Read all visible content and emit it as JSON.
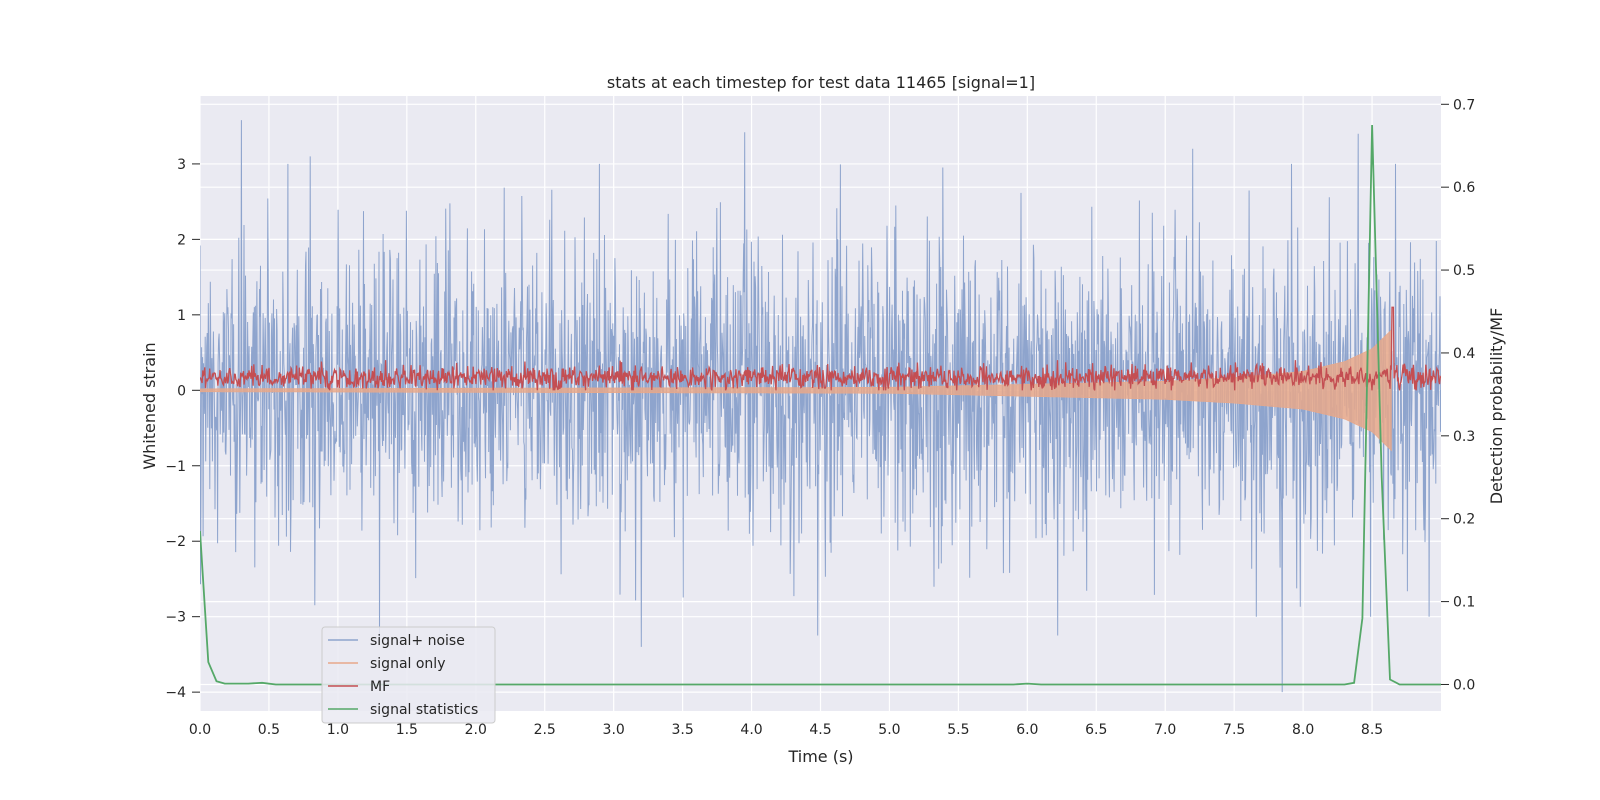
{
  "chart_data": {
    "type": "line",
    "title": "stats at each timestep for test data 11465 [signal=1]",
    "xlabel": "Time (s)",
    "ylabel_left": "Whitened strain",
    "ylabel_right": "Detection probability/MF",
    "xlim": [
      0.0,
      9.0
    ],
    "ylim_left": [
      -4.25,
      3.9
    ],
    "ylim_right": [
      -0.032,
      0.71
    ],
    "x_ticks": [
      "0.0",
      "0.5",
      "1.0",
      "1.5",
      "2.0",
      "2.5",
      "3.0",
      "3.5",
      "4.0",
      "4.5",
      "5.0",
      "5.5",
      "6.0",
      "6.5",
      "7.0",
      "7.5",
      "8.0",
      "8.5"
    ],
    "y_left_ticks": [
      "3",
      "2",
      "1",
      "0",
      "−1",
      "−2",
      "−3",
      "−4"
    ],
    "y_right_ticks": [
      "0.7",
      "0.6",
      "0.5",
      "0.4",
      "0.3",
      "0.2",
      "0.1",
      "0.0"
    ],
    "grid": true,
    "legend_position": "lower left",
    "series": [
      {
        "name": "signal+ noise",
        "color": "#8ea4cd",
        "axis": "left",
        "description_values": {
          "typical_range": [
            -2.0,
            2.0
          ],
          "peaks_x": [
            0.3,
            0.8,
            3.95,
            7.2,
            8.4
          ],
          "peaks_y": [
            3.58,
            3.1,
            3.42,
            3.2,
            3.4
          ],
          "troughs_x": [
            1.3,
            3.2,
            4.48,
            6.22,
            7.85
          ],
          "troughs_y": [
            -3.35,
            -3.4,
            -3.25,
            -3.25,
            -4.0
          ]
        }
      },
      {
        "name": "signal only",
        "color": "#e8a88a",
        "axis": "left",
        "envelope": {
          "x": [
            0.0,
            5.0,
            6.0,
            7.0,
            7.5,
            8.0,
            8.3,
            8.5,
            8.64,
            8.65
          ],
          "amplitude": [
            0.02,
            0.04,
            0.08,
            0.12,
            0.17,
            0.25,
            0.38,
            0.55,
            0.8,
            0.0
          ]
        }
      },
      {
        "name": "MF",
        "color": "#c44e52",
        "axis": "left",
        "description_values": {
          "baseline": 0.17,
          "range": [
            0.0,
            0.4
          ],
          "spike_x": 8.65,
          "spike_y": 1.1
        }
      },
      {
        "name": "signal statistics",
        "color": "#55a868",
        "axis": "right",
        "x": [
          0.0,
          0.06,
          0.12,
          0.18,
          0.25,
          0.35,
          0.45,
          0.55,
          0.7,
          1.0,
          2.0,
          3.0,
          4.0,
          5.0,
          5.9,
          6.0,
          6.1,
          7.0,
          8.0,
          8.3,
          8.37,
          8.43,
          8.5,
          8.57,
          8.63,
          8.7,
          8.8,
          9.0
        ],
        "y": [
          0.185,
          0.027,
          0.004,
          0.001,
          0.001,
          0.001,
          0.002,
          0.0,
          0.0,
          0.0,
          0.0,
          0.0,
          0.0,
          0.0,
          0.0,
          0.001,
          0.0,
          0.0,
          0.0,
          0.0,
          0.002,
          0.08,
          0.675,
          0.25,
          0.006,
          0.0,
          0.0,
          0.0
        ]
      }
    ]
  }
}
